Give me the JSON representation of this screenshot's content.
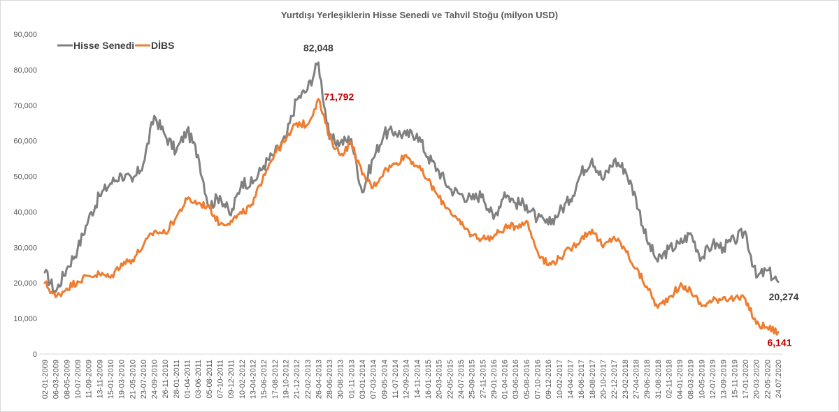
{
  "chart_data": {
    "type": "line",
    "title": "Yurtdışı Yerleşiklerin Hisse Senedi ve Tahvil Stoğu (milyon USD)",
    "xlabel": "",
    "ylabel": "",
    "ylim": [
      0,
      90000
    ],
    "yticks": [
      0,
      10000,
      20000,
      30000,
      40000,
      50000,
      60000,
      70000,
      80000,
      90000
    ],
    "ytick_labels": [
      "0",
      "10,000",
      "20,000",
      "30,000",
      "40,000",
      "50,000",
      "60,000",
      "70,000",
      "80,000",
      "90,000"
    ],
    "grid": false,
    "legend_position": "top-left",
    "categories": [
      "02-01-2009",
      "06-03-2009",
      "08-05-2009",
      "10-07-2009",
      "11-09-2009",
      "13-11-2009",
      "15-01-2010",
      "19-03-2010",
      "21-05-2010",
      "23-07-2010",
      "24-09-2010",
      "26-11-2010",
      "28-01-2011",
      "01-04-2011",
      "03-06-2011",
      "05-08-2011",
      "07-10-2011",
      "09-12-2011",
      "10-02-2012",
      "13-04-2012",
      "15-06-2012",
      "17-08-2012",
      "19-10-2012",
      "21-12-2012",
      "22-02-2013",
      "26-04-2013",
      "28-06-2013",
      "30-08-2013",
      "01-11-2013",
      "03-01-2014",
      "07-03-2014",
      "09-05-2014",
      "11-07-2014",
      "12-09-2014",
      "14-11-2014",
      "16-01-2015",
      "20-03-2015",
      "22-05-2015",
      "24-07-2015",
      "25-09-2015",
      "27-11-2015",
      "29-01-2016",
      "01-04-2016",
      "03-06-2016",
      "05-08-2016",
      "07-10-2016",
      "09-12-2016",
      "10-02-2017",
      "14-04-2017",
      "16-06-2017",
      "18-08-2017",
      "20-10-2017",
      "22-12-2017",
      "23-02-2018",
      "27-04-2018",
      "29-06-2018",
      "31-08-2018",
      "02-11-2018",
      "04-01-2019",
      "08-03-2019",
      "10-05-2019",
      "12-07-2019",
      "13-09-2019",
      "15-11-2019",
      "17-01-2020",
      "20-03-2020",
      "22-05-2020",
      "24.07.2020"
    ],
    "series": [
      {
        "name": "Hisse Senedi",
        "color": "#808080",
        "values": [
          23000,
          17500,
          24000,
          29500,
          38000,
          44500,
          48000,
          50500,
          48500,
          53500,
          67000,
          61500,
          57000,
          63000,
          56000,
          41500,
          44500,
          39000,
          48500,
          48000,
          53000,
          56500,
          60500,
          71500,
          74500,
          82048,
          60500,
          59500,
          60500,
          45500,
          55000,
          62000,
          62500,
          61500,
          62000,
          55500,
          51500,
          46500,
          45000,
          43500,
          45000,
          38000,
          45500,
          42500,
          42000,
          38000,
          36500,
          40000,
          43500,
          51000,
          55000,
          49000,
          54500,
          52000,
          44000,
          32000,
          26000,
          29500,
          31000,
          34000,
          27000,
          31000,
          30000,
          32000,
          34500,
          21500,
          23500,
          20274
        ]
      },
      {
        "name": "DİBS",
        "color": "#ED7D31",
        "values": [
          20000,
          16000,
          18500,
          20500,
          22000,
          22500,
          21500,
          25500,
          26500,
          30500,
          34500,
          34000,
          38500,
          43500,
          42500,
          41500,
          36500,
          37500,
          39500,
          42000,
          50500,
          56500,
          60000,
          65000,
          64500,
          71792,
          61000,
          56000,
          59500,
          50500,
          47000,
          51500,
          53500,
          56000,
          53000,
          49000,
          44000,
          40500,
          36500,
          33500,
          32500,
          33000,
          35500,
          36000,
          37500,
          29000,
          25000,
          27000,
          29500,
          32500,
          35000,
          30000,
          33000,
          29500,
          24000,
          19000,
          13000,
          16000,
          19000,
          18000,
          13500,
          15000,
          16000,
          15500,
          15500,
          8500,
          7500,
          6141
        ]
      }
    ],
    "annotations": [
      {
        "series": "Hisse Senedi",
        "label": "82,048",
        "category": "26-04-2013",
        "color": "#404040"
      },
      {
        "series": "DİBS",
        "label": "71,792",
        "category": "26-04-2013",
        "color": "#C00000"
      },
      {
        "series": "Hisse Senedi",
        "label": "20,274",
        "category": "24.07.2020",
        "color": "#404040"
      },
      {
        "series": "DİBS",
        "label": "6,141",
        "category": "24.07.2020",
        "color": "#C00000"
      }
    ]
  }
}
